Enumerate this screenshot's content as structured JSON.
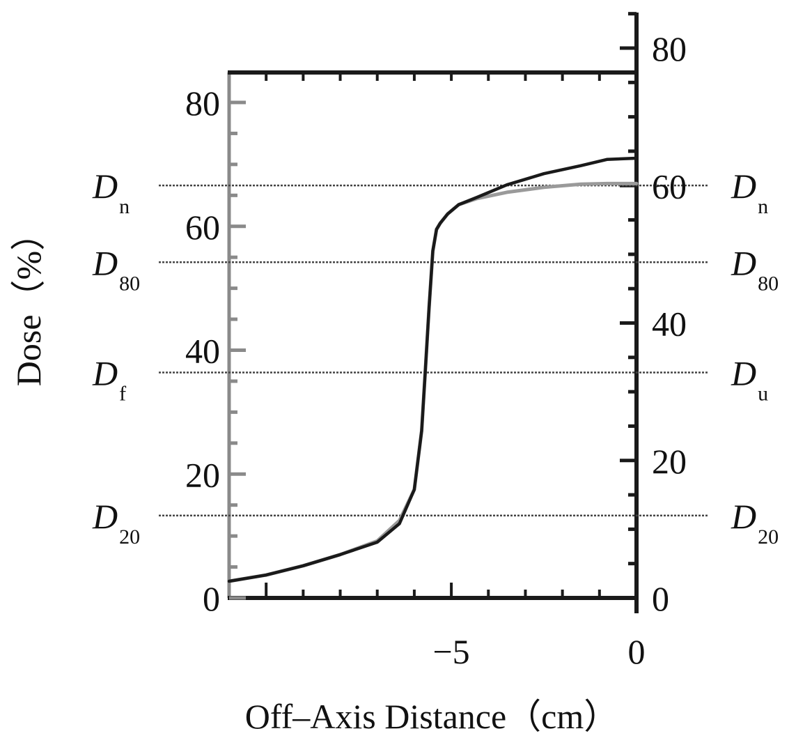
{
  "chart_data": {
    "type": "line",
    "xlabel": "Off–Axis Distance（cm）",
    "ylabel": "Dose（%）",
    "xlim": [
      -11,
      0
    ],
    "ylim_left": [
      0,
      85
    ],
    "ylim_right": [
      0,
      85
    ],
    "x_ticks": [
      {
        "value": -5,
        "label": "−5"
      },
      {
        "value": 0,
        "label": "0"
      }
    ],
    "y_ticks_left": [
      {
        "value": 0,
        "label": "0"
      },
      {
        "value": 20,
        "label": "20"
      },
      {
        "value": 40,
        "label": "40"
      },
      {
        "value": 60,
        "label": "60"
      },
      {
        "value": 80,
        "label": "80"
      }
    ],
    "y_ticks_right": [
      {
        "value": 0,
        "label": "0"
      },
      {
        "value": 20,
        "label": "20"
      },
      {
        "value": 40,
        "label": "40"
      },
      {
        "value": 60,
        "label": "60"
      },
      {
        "value": 80,
        "label": "80"
      }
    ],
    "grid": false,
    "reference_lines": [
      {
        "y": 66.6,
        "left_main": "D",
        "left_sub": "n",
        "right_main": "D",
        "right_sub": "n"
      },
      {
        "y": 54.2,
        "left_main": "D",
        "left_sub": "80",
        "right_main": "D",
        "right_sub": "80"
      },
      {
        "y": 36.4,
        "left_main": "D",
        "left_sub": "f",
        "right_main": "D",
        "right_sub": "u"
      },
      {
        "y": 13.3,
        "left_main": "D",
        "left_sub": "20",
        "right_main": "D",
        "right_sub": "20"
      }
    ],
    "series": [
      {
        "color": "#9a9a9a",
        "x": [
          -11.0,
          -10.0,
          -9.0,
          -8.0,
          -7.0,
          -6.4,
          -6.0,
          -5.8,
          -5.7,
          -5.6,
          -5.5,
          -5.4,
          -5.3,
          -5.1,
          -4.8,
          -4.3,
          -3.5,
          -2.5,
          -1.5,
          -0.8,
          0.0
        ],
        "y": [
          2.7,
          3.7,
          5.2,
          7.0,
          9.2,
          12.5,
          17.5,
          27.0,
          37.0,
          47.0,
          56.0,
          59.5,
          60.5,
          62.0,
          63.5,
          64.5,
          65.5,
          66.3,
          66.8,
          66.9,
          66.9
        ]
      },
      {
        "color": "#1a1a1a",
        "x": [
          -11.0,
          -10.0,
          -9.0,
          -8.0,
          -7.0,
          -6.4,
          -6.0,
          -5.8,
          -5.7,
          -5.6,
          -5.5,
          -5.4,
          -5.3,
          -5.1,
          -4.8,
          -4.3,
          -3.5,
          -2.5,
          -1.5,
          -0.8,
          0.0
        ],
        "y": [
          2.7,
          3.7,
          5.2,
          7.0,
          9.0,
          12.0,
          17.5,
          27.0,
          37.0,
          47.0,
          56.0,
          59.5,
          60.5,
          62.0,
          63.5,
          64.7,
          66.7,
          68.5,
          69.8,
          70.8,
          71.0
        ]
      }
    ]
  }
}
